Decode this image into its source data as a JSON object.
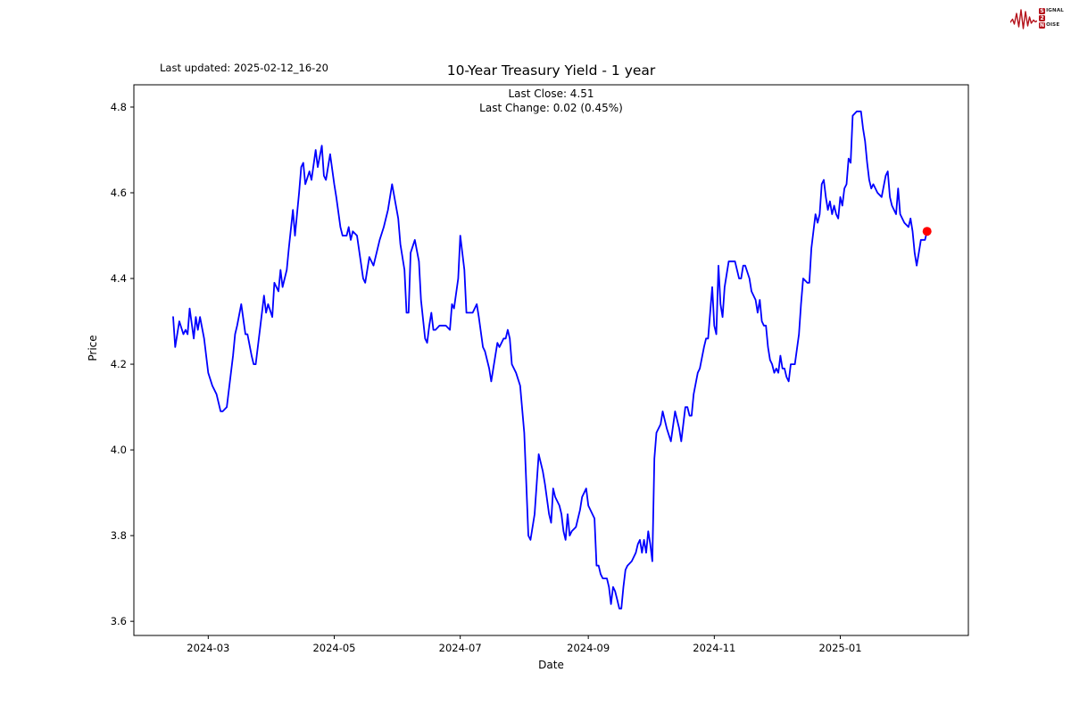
{
  "header": {
    "last_updated": "Last updated: 2025-02-12_16-20",
    "title": "10-Year Treasury Yield - 1 year"
  },
  "subtitle": {
    "line1": "Last Close: 4.51",
    "line2": "Last Change: 0.02 (0.45%)"
  },
  "axes": {
    "x_label": "Date",
    "y_label": "Price"
  },
  "logo": {
    "s": "S",
    "igal": "IGNAL",
    "two": "2",
    "n": "N",
    "oise": "OISE",
    "accent_color": "#b5121b"
  },
  "chart_data": {
    "type": "line",
    "title": "10-Year Treasury Yield - 1 year",
    "xlabel": "Date",
    "ylabel": "Price",
    "line_color": "#0000ff",
    "last_marker_color": "#ff0000",
    "grid": false,
    "ylim": [
      3.567,
      4.852
    ],
    "xlim": [
      "2024-01-25",
      "2025-03-04"
    ],
    "y_ticks": [
      3.6,
      3.8,
      4.0,
      4.2,
      4.4,
      4.6,
      4.8
    ],
    "x_ticks": [
      {
        "date": "2024-03-01",
        "label": "2024-03"
      },
      {
        "date": "2024-05-01",
        "label": "2024-05"
      },
      {
        "date": "2024-07-01",
        "label": "2024-07"
      },
      {
        "date": "2024-09-01",
        "label": "2024-09"
      },
      {
        "date": "2024-11-01",
        "label": "2024-11"
      },
      {
        "date": "2025-01-01",
        "label": "2025-01"
      }
    ],
    "last_close": 4.51,
    "last_change": 0.02,
    "last_change_pct": "0.45%",
    "points": [
      [
        "2024-02-13",
        4.31
      ],
      [
        "2024-02-14",
        4.24
      ],
      [
        "2024-02-16",
        4.3
      ],
      [
        "2024-02-18",
        4.27
      ],
      [
        "2024-02-19",
        4.28
      ],
      [
        "2024-02-20",
        4.27
      ],
      [
        "2024-02-21",
        4.33
      ],
      [
        "2024-02-23",
        4.26
      ],
      [
        "2024-02-24",
        4.31
      ],
      [
        "2024-02-25",
        4.28
      ],
      [
        "2024-02-26",
        4.31
      ],
      [
        "2024-02-28",
        4.26
      ],
      [
        "2024-03-01",
        4.18
      ],
      [
        "2024-03-03",
        4.15
      ],
      [
        "2024-03-05",
        4.13
      ],
      [
        "2024-03-07",
        4.09
      ],
      [
        "2024-03-08",
        4.09
      ],
      [
        "2024-03-10",
        4.1
      ],
      [
        "2024-03-13",
        4.22
      ],
      [
        "2024-03-14",
        4.27
      ],
      [
        "2024-03-15",
        4.29
      ],
      [
        "2024-03-17",
        4.34
      ],
      [
        "2024-03-19",
        4.27
      ],
      [
        "2024-03-20",
        4.27
      ],
      [
        "2024-03-22",
        4.22
      ],
      [
        "2024-03-23",
        4.2
      ],
      [
        "2024-03-24",
        4.2
      ],
      [
        "2024-03-26",
        4.28
      ],
      [
        "2024-03-28",
        4.36
      ],
      [
        "2024-03-29",
        4.32
      ],
      [
        "2024-03-30",
        4.34
      ],
      [
        "2024-04-01",
        4.31
      ],
      [
        "2024-04-02",
        4.39
      ],
      [
        "2024-04-04",
        4.37
      ],
      [
        "2024-04-05",
        4.42
      ],
      [
        "2024-04-06",
        4.38
      ],
      [
        "2024-04-08",
        4.42
      ],
      [
        "2024-04-09",
        4.47
      ],
      [
        "2024-04-11",
        4.56
      ],
      [
        "2024-04-12",
        4.5
      ],
      [
        "2024-04-14",
        4.6
      ],
      [
        "2024-04-15",
        4.66
      ],
      [
        "2024-04-16",
        4.67
      ],
      [
        "2024-04-17",
        4.62
      ],
      [
        "2024-04-19",
        4.65
      ],
      [
        "2024-04-20",
        4.63
      ],
      [
        "2024-04-22",
        4.7
      ],
      [
        "2024-04-23",
        4.66
      ],
      [
        "2024-04-25",
        4.71
      ],
      [
        "2024-04-26",
        4.64
      ],
      [
        "2024-04-27",
        4.63
      ],
      [
        "2024-04-29",
        4.69
      ],
      [
        "2024-05-01",
        4.62
      ],
      [
        "2024-05-02",
        4.59
      ],
      [
        "2024-05-04",
        4.52
      ],
      [
        "2024-05-05",
        4.5
      ],
      [
        "2024-05-07",
        4.5
      ],
      [
        "2024-05-08",
        4.52
      ],
      [
        "2024-05-09",
        4.49
      ],
      [
        "2024-05-10",
        4.51
      ],
      [
        "2024-05-12",
        4.5
      ],
      [
        "2024-05-15",
        4.4
      ],
      [
        "2024-05-16",
        4.39
      ],
      [
        "2024-05-18",
        4.45
      ],
      [
        "2024-05-20",
        4.43
      ],
      [
        "2024-05-22",
        4.47
      ],
      [
        "2024-05-23",
        4.49
      ],
      [
        "2024-05-25",
        4.52
      ],
      [
        "2024-05-27",
        4.56
      ],
      [
        "2024-05-28",
        4.59
      ],
      [
        "2024-05-29",
        4.62
      ],
      [
        "2024-06-01",
        4.54
      ],
      [
        "2024-06-02",
        4.48
      ],
      [
        "2024-06-04",
        4.42
      ],
      [
        "2024-06-05",
        4.32
      ],
      [
        "2024-06-06",
        4.32
      ],
      [
        "2024-06-07",
        4.46
      ],
      [
        "2024-06-09",
        4.49
      ],
      [
        "2024-06-11",
        4.44
      ],
      [
        "2024-06-12",
        4.35
      ],
      [
        "2024-06-14",
        4.26
      ],
      [
        "2024-06-15",
        4.25
      ],
      [
        "2024-06-16",
        4.29
      ],
      [
        "2024-06-17",
        4.32
      ],
      [
        "2024-06-18",
        4.28
      ],
      [
        "2024-06-19",
        4.28
      ],
      [
        "2024-06-21",
        4.29
      ],
      [
        "2024-06-22",
        4.29
      ],
      [
        "2024-06-24",
        4.29
      ],
      [
        "2024-06-26",
        4.28
      ],
      [
        "2024-06-27",
        4.34
      ],
      [
        "2024-06-28",
        4.33
      ],
      [
        "2024-06-30",
        4.4
      ],
      [
        "2024-07-01",
        4.5
      ],
      [
        "2024-07-03",
        4.42
      ],
      [
        "2024-07-04",
        4.32
      ],
      [
        "2024-07-06",
        4.32
      ],
      [
        "2024-07-07",
        4.32
      ],
      [
        "2024-07-09",
        4.34
      ],
      [
        "2024-07-10",
        4.31
      ],
      [
        "2024-07-12",
        4.24
      ],
      [
        "2024-07-13",
        4.23
      ],
      [
        "2024-07-15",
        4.19
      ],
      [
        "2024-07-16",
        4.16
      ],
      [
        "2024-07-19",
        4.25
      ],
      [
        "2024-07-20",
        4.24
      ],
      [
        "2024-07-22",
        4.26
      ],
      [
        "2024-07-23",
        4.26
      ],
      [
        "2024-07-24",
        4.28
      ],
      [
        "2024-07-25",
        4.26
      ],
      [
        "2024-07-26",
        4.2
      ],
      [
        "2024-07-28",
        4.18
      ],
      [
        "2024-07-30",
        4.15
      ],
      [
        "2024-08-01",
        4.04
      ],
      [
        "2024-08-03",
        3.8
      ],
      [
        "2024-08-04",
        3.79
      ],
      [
        "2024-08-06",
        3.85
      ],
      [
        "2024-08-08",
        3.99
      ],
      [
        "2024-08-10",
        3.95
      ],
      [
        "2024-08-11",
        3.92
      ],
      [
        "2024-08-13",
        3.85
      ],
      [
        "2024-08-14",
        3.83
      ],
      [
        "2024-08-15",
        3.91
      ],
      [
        "2024-08-16",
        3.89
      ],
      [
        "2024-08-18",
        3.87
      ],
      [
        "2024-08-19",
        3.85
      ],
      [
        "2024-08-20",
        3.81
      ],
      [
        "2024-08-21",
        3.79
      ],
      [
        "2024-08-22",
        3.85
      ],
      [
        "2024-08-23",
        3.8
      ],
      [
        "2024-08-24",
        3.81
      ],
      [
        "2024-08-26",
        3.82
      ],
      [
        "2024-08-28",
        3.86
      ],
      [
        "2024-08-29",
        3.89
      ],
      [
        "2024-08-31",
        3.91
      ],
      [
        "2024-09-01",
        3.87
      ],
      [
        "2024-09-03",
        3.85
      ],
      [
        "2024-09-04",
        3.84
      ],
      [
        "2024-09-05",
        3.73
      ],
      [
        "2024-09-06",
        3.73
      ],
      [
        "2024-09-07",
        3.71
      ],
      [
        "2024-09-08",
        3.7
      ],
      [
        "2024-09-10",
        3.7
      ],
      [
        "2024-09-11",
        3.68
      ],
      [
        "2024-09-12",
        3.64
      ],
      [
        "2024-09-13",
        3.68
      ],
      [
        "2024-09-14",
        3.67
      ],
      [
        "2024-09-15",
        3.65
      ],
      [
        "2024-09-16",
        3.63
      ],
      [
        "2024-09-17",
        3.63
      ],
      [
        "2024-09-18",
        3.68
      ],
      [
        "2024-09-19",
        3.72
      ],
      [
        "2024-09-20",
        3.73
      ],
      [
        "2024-09-22",
        3.74
      ],
      [
        "2024-09-23",
        3.75
      ],
      [
        "2024-09-24",
        3.76
      ],
      [
        "2024-09-25",
        3.78
      ],
      [
        "2024-09-26",
        3.79
      ],
      [
        "2024-09-27",
        3.76
      ],
      [
        "2024-09-28",
        3.79
      ],
      [
        "2024-09-29",
        3.76
      ],
      [
        "2024-09-30",
        3.81
      ],
      [
        "2024-10-01",
        3.78
      ],
      [
        "2024-10-02",
        3.74
      ],
      [
        "2024-10-03",
        3.98
      ],
      [
        "2024-10-04",
        4.04
      ],
      [
        "2024-10-06",
        4.06
      ],
      [
        "2024-10-07",
        4.09
      ],
      [
        "2024-10-09",
        4.05
      ],
      [
        "2024-10-11",
        4.02
      ],
      [
        "2024-10-13",
        4.09
      ],
      [
        "2024-10-15",
        4.05
      ],
      [
        "2024-10-16",
        4.02
      ],
      [
        "2024-10-18",
        4.1
      ],
      [
        "2024-10-19",
        4.1
      ],
      [
        "2024-10-20",
        4.08
      ],
      [
        "2024-10-21",
        4.08
      ],
      [
        "2024-10-22",
        4.13
      ],
      [
        "2024-10-24",
        4.18
      ],
      [
        "2024-10-25",
        4.19
      ],
      [
        "2024-10-27",
        4.24
      ],
      [
        "2024-10-28",
        4.26
      ],
      [
        "2024-10-29",
        4.26
      ],
      [
        "2024-10-30",
        4.32
      ],
      [
        "2024-10-31",
        4.38
      ],
      [
        "2024-11-01",
        4.29
      ],
      [
        "2024-11-02",
        4.27
      ],
      [
        "2024-11-03",
        4.43
      ],
      [
        "2024-11-04",
        4.34
      ],
      [
        "2024-11-05",
        4.31
      ],
      [
        "2024-11-06",
        4.38
      ],
      [
        "2024-11-07",
        4.41
      ],
      [
        "2024-11-08",
        4.44
      ],
      [
        "2024-11-09",
        4.44
      ],
      [
        "2024-11-11",
        4.44
      ],
      [
        "2024-11-13",
        4.4
      ],
      [
        "2024-11-14",
        4.4
      ],
      [
        "2024-11-15",
        4.43
      ],
      [
        "2024-11-16",
        4.43
      ],
      [
        "2024-11-18",
        4.4
      ],
      [
        "2024-11-19",
        4.37
      ],
      [
        "2024-11-21",
        4.35
      ],
      [
        "2024-11-22",
        4.32
      ],
      [
        "2024-11-23",
        4.35
      ],
      [
        "2024-11-24",
        4.3
      ],
      [
        "2024-11-25",
        4.29
      ],
      [
        "2024-11-26",
        4.29
      ],
      [
        "2024-11-27",
        4.24
      ],
      [
        "2024-11-28",
        4.21
      ],
      [
        "2024-11-29",
        4.2
      ],
      [
        "2024-11-30",
        4.18
      ],
      [
        "2024-12-01",
        4.19
      ],
      [
        "2024-12-02",
        4.18
      ],
      [
        "2024-12-03",
        4.22
      ],
      [
        "2024-12-04",
        4.19
      ],
      [
        "2024-12-05",
        4.19
      ],
      [
        "2024-12-06",
        4.17
      ],
      [
        "2024-12-07",
        4.16
      ],
      [
        "2024-12-08",
        4.2
      ],
      [
        "2024-12-10",
        4.2
      ],
      [
        "2024-12-12",
        4.27
      ],
      [
        "2024-12-13",
        4.34
      ],
      [
        "2024-12-14",
        4.4
      ],
      [
        "2024-12-16",
        4.39
      ],
      [
        "2024-12-17",
        4.39
      ],
      [
        "2024-12-18",
        4.47
      ],
      [
        "2024-12-19",
        4.51
      ],
      [
        "2024-12-20",
        4.55
      ],
      [
        "2024-12-21",
        4.53
      ],
      [
        "2024-12-22",
        4.55
      ],
      [
        "2024-12-23",
        4.62
      ],
      [
        "2024-12-24",
        4.63
      ],
      [
        "2024-12-25",
        4.59
      ],
      [
        "2024-12-26",
        4.56
      ],
      [
        "2024-12-27",
        4.58
      ],
      [
        "2024-12-28",
        4.55
      ],
      [
        "2024-12-29",
        4.57
      ],
      [
        "2024-12-30",
        4.55
      ],
      [
        "2024-12-31",
        4.54
      ],
      [
        "2025-01-01",
        4.59
      ],
      [
        "2025-01-02",
        4.57
      ],
      [
        "2025-01-03",
        4.61
      ],
      [
        "2025-01-04",
        4.62
      ],
      [
        "2025-01-05",
        4.68
      ],
      [
        "2025-01-06",
        4.67
      ],
      [
        "2025-01-07",
        4.78
      ],
      [
        "2025-01-09",
        4.79
      ],
      [
        "2025-01-10",
        4.79
      ],
      [
        "2025-01-11",
        4.79
      ],
      [
        "2025-01-12",
        4.75
      ],
      [
        "2025-01-13",
        4.72
      ],
      [
        "2025-01-14",
        4.67
      ],
      [
        "2025-01-15",
        4.63
      ],
      [
        "2025-01-16",
        4.61
      ],
      [
        "2025-01-17",
        4.62
      ],
      [
        "2025-01-19",
        4.6
      ],
      [
        "2025-01-21",
        4.59
      ],
      [
        "2025-01-23",
        4.64
      ],
      [
        "2025-01-24",
        4.65
      ],
      [
        "2025-01-25",
        4.59
      ],
      [
        "2025-01-26",
        4.57
      ],
      [
        "2025-01-28",
        4.55
      ],
      [
        "2025-01-29",
        4.61
      ],
      [
        "2025-01-30",
        4.55
      ],
      [
        "2025-02-01",
        4.53
      ],
      [
        "2025-02-03",
        4.52
      ],
      [
        "2025-02-04",
        4.54
      ],
      [
        "2025-02-05",
        4.51
      ],
      [
        "2025-02-06",
        4.46
      ],
      [
        "2025-02-07",
        4.43
      ],
      [
        "2025-02-08",
        4.46
      ],
      [
        "2025-02-09",
        4.49
      ],
      [
        "2025-02-10",
        4.49
      ],
      [
        "2025-02-11",
        4.49
      ],
      [
        "2025-02-12",
        4.51
      ]
    ]
  }
}
